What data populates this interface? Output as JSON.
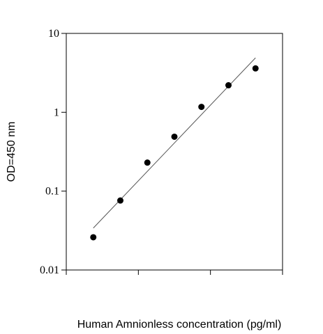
{
  "chart_data": {
    "type": "scatter",
    "title": "",
    "xlabel": "Human  Amnionless concentration (pg/ml)",
    "ylabel": "OD=450 nm",
    "y_scale": "log",
    "ylim": [
      0.01,
      10
    ],
    "y_ticks": [
      0.01,
      0.1,
      1,
      10
    ],
    "y_tick_labels": [
      "0.01",
      "0.1",
      "1",
      "10"
    ],
    "x_tick_count": 4,
    "x_tick_labels": [],
    "grid": false,
    "legend": "none",
    "marker_color": "#000000",
    "line_color": "#555555",
    "series": [
      {
        "points": [
          {
            "x": 1,
            "y": 0.026
          },
          {
            "x": 2,
            "y": 0.076
          },
          {
            "x": 3,
            "y": 0.23
          },
          {
            "x": 4,
            "y": 0.49
          },
          {
            "x": 5,
            "y": 1.17
          },
          {
            "x": 6,
            "y": 2.2
          },
          {
            "x": 7,
            "y": 3.6
          }
        ]
      }
    ],
    "trendline": {
      "from": {
        "x": 1,
        "y": 0.034
      },
      "to": {
        "x": 7,
        "y": 4.9
      }
    }
  }
}
